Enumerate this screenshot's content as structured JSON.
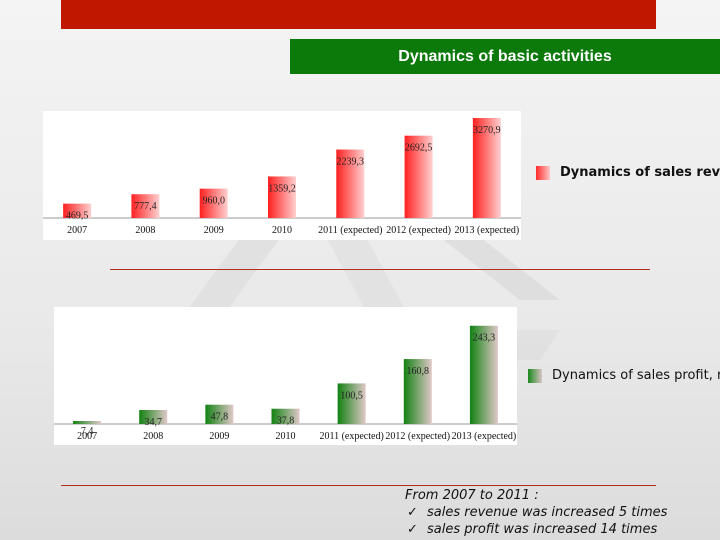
{
  "slide": {
    "title": "Dynamics of basic activities",
    "colors": {
      "top_bar": "#bf1800",
      "title_bar": "#0b7a0b",
      "red": "#ff2a2a",
      "green": "#1a8a1a",
      "rule": "#b03020"
    }
  },
  "chart_data": [
    {
      "type": "bar",
      "categories": [
        "2007",
        "2008",
        "2009",
        "2010",
        "2011 (expected)",
        "2012 (expected)",
        "2013 (expected)"
      ],
      "series": [
        {
          "name": "Dynamics of sales revenue",
          "values": [
            469.5,
            777.4,
            960.0,
            1359.2,
            2239.3,
            2692.5,
            3270.9
          ]
        }
      ],
      "value_labels": [
        "469,5",
        "777,4",
        "960,0",
        "1359,2",
        "2239,3",
        "2692,5",
        "3270,9"
      ],
      "legend_label": "Dynamics of sales reven",
      "legend_position": "right",
      "ylim": [
        0,
        3500
      ],
      "grid": false,
      "color": "red"
    },
    {
      "type": "bar",
      "categories": [
        "2007",
        "2008",
        "2009",
        "2010",
        "2011 (expected)",
        "2012 (expected)",
        "2013 (expected)"
      ],
      "series": [
        {
          "name": "Dynamics of sales profit, r",
          "values": [
            7.4,
            34.7,
            47.8,
            37.8,
            100.5,
            160.8,
            243.3
          ]
        }
      ],
      "value_labels": [
        "7,4",
        "34,7",
        "47,8",
        "37,8",
        "100,5",
        "160,8",
        "243,3"
      ],
      "legend_label": "Dynamics of sales profit, r",
      "legend_position": "right",
      "ylim": [
        0,
        260
      ],
      "grid": false,
      "color": "green"
    }
  ],
  "summary": {
    "heading": "From 2007 to 2011 :",
    "items": [
      "sales revenue was increased 5 times",
      "sales profit was increased 14 times"
    ],
    "check_symbol": "✓"
  }
}
